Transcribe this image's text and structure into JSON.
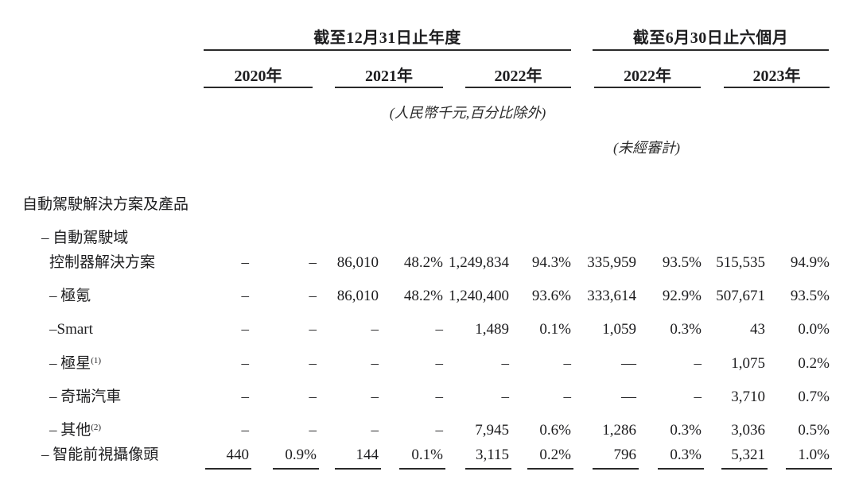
{
  "table": {
    "header": {
      "annual_group_title": "截至12月31日止年度",
      "interim_group_title": "截至6月30日止六個月",
      "years": [
        "2020年",
        "2021年",
        "2022年",
        "2022年",
        "2023年"
      ],
      "currency_note": "(人民幣千元,百分比除外)",
      "unaudited_note": "(未經審計)"
    },
    "rows": [
      {
        "label": "自動駕駛解決方案及產品",
        "indent": 0,
        "values": []
      },
      {
        "label": "– 自動駕駛域",
        "indent": 1,
        "values": []
      },
      {
        "label": "控制器解決方案",
        "indent": 2,
        "values": [
          "–",
          "–",
          "86,010",
          "48.2%",
          "1,249,834",
          "94.3%",
          "335,959",
          "93.5%",
          "515,535",
          "94.9%"
        ]
      },
      {
        "label": "– 極氪",
        "indent": 2,
        "values": [
          "–",
          "–",
          "86,010",
          "48.2%",
          "1,240,400",
          "93.6%",
          "333,614",
          "92.9%",
          "507,671",
          "93.5%"
        ]
      },
      {
        "label": "–Smart",
        "indent": 2,
        "values": [
          "–",
          "–",
          "–",
          "–",
          "1,489",
          "0.1%",
          "1,059",
          "0.3%",
          "43",
          "0.0%"
        ]
      },
      {
        "label": "– 極星",
        "sup": "(1)",
        "indent": 2,
        "values": [
          "–",
          "–",
          "–",
          "–",
          "–",
          "–",
          "—",
          "–",
          "1,075",
          "0.2%"
        ]
      },
      {
        "label": "– 奇瑞汽車",
        "indent": 2,
        "values": [
          "–",
          "–",
          "–",
          "–",
          "–",
          "–",
          "—",
          "–",
          "3,710",
          "0.7%"
        ]
      },
      {
        "label": "– 其他",
        "sup": "(2)",
        "indent": 2,
        "values": [
          "–",
          "–",
          "–",
          "–",
          "7,945",
          "0.6%",
          "1,286",
          "0.3%",
          "3,036",
          "0.5%"
        ]
      },
      {
        "label": "– 智能前視攝像頭",
        "indent": 1,
        "underline": true,
        "values": [
          "440",
          "0.9%",
          "144",
          "0.1%",
          "3,115",
          "0.2%",
          "796",
          "0.3%",
          "5,321",
          "1.0%"
        ]
      }
    ]
  }
}
